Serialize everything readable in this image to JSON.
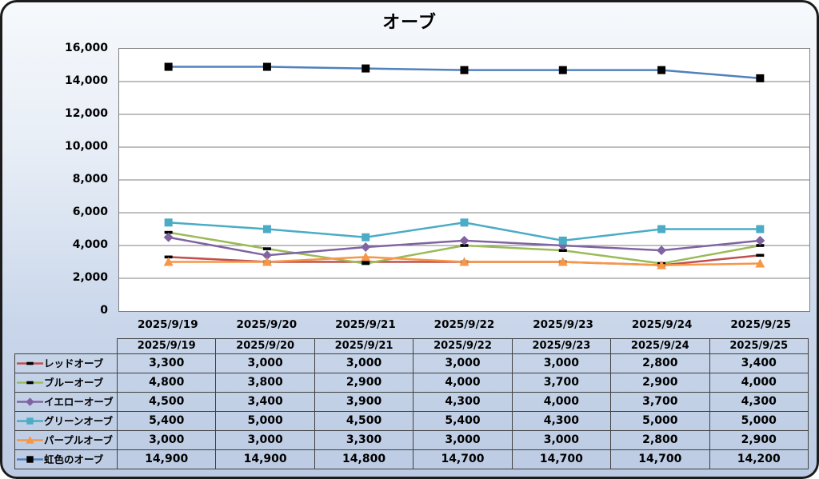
{
  "title": "オーブ",
  "chart_data": {
    "type": "line",
    "title": "オーブ",
    "categories": [
      "2025/9/19",
      "2025/9/20",
      "2025/9/21",
      "2025/9/22",
      "2025/9/23",
      "2025/9/24",
      "2025/9/25"
    ],
    "series": [
      {
        "name": "レッドオーブ",
        "color": "#C0504D",
        "marker": "dash",
        "marker_color": "#000000",
        "values": [
          3300,
          3000,
          3000,
          3000,
          3000,
          2800,
          3400
        ]
      },
      {
        "name": "ブルーオーブ",
        "color": "#9BBB59",
        "marker": "dash",
        "marker_color": "#000000",
        "values": [
          4800,
          3800,
          2900,
          4000,
          3700,
          2900,
          4000
        ]
      },
      {
        "name": "イエローオーブ",
        "color": "#8064A2",
        "marker": "diamond",
        "marker_color": "#8064A2",
        "values": [
          4500,
          3400,
          3900,
          4300,
          4000,
          3700,
          4300
        ]
      },
      {
        "name": "グリーンオーブ",
        "color": "#4BACC6",
        "marker": "square",
        "marker_color": "#4BACC6",
        "values": [
          5400,
          5000,
          4500,
          5400,
          4300,
          5000,
          5000
        ]
      },
      {
        "name": "パープルオーブ",
        "color": "#F79646",
        "marker": "triangle",
        "marker_color": "#F79646",
        "values": [
          3000,
          3000,
          3300,
          3000,
          3000,
          2800,
          2900
        ]
      },
      {
        "name": "虹色のオーブ",
        "color": "#4F81BD",
        "marker": "square",
        "marker_color": "#000000",
        "values": [
          14900,
          14900,
          14800,
          14700,
          14700,
          14700,
          14200
        ]
      }
    ],
    "ylim": [
      0,
      16000
    ],
    "ytick_step": 2000,
    "ytick_labels": [
      "0",
      "2,000",
      "4,000",
      "6,000",
      "8,000",
      "10,000",
      "12,000",
      "14,000",
      "16,000"
    ],
    "xlabel": "",
    "ylabel": "",
    "grid": true,
    "gridline_color": "#7f7f7f",
    "plot_background": "#ffffff",
    "legend_position": "table-left",
    "table_shows_values": true
  }
}
